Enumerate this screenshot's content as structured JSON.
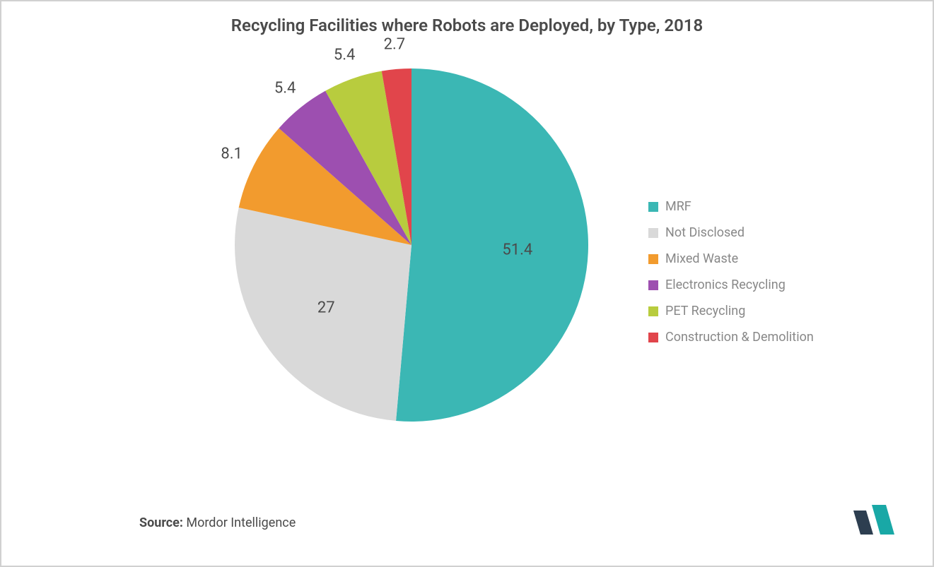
{
  "chart": {
    "type": "pie",
    "title": "Recycling Facilities where Robots are Deployed, by Type, 2018",
    "title_fontsize": 24,
    "title_color": "#4a4a4a",
    "background_color": "#ffffff",
    "border_color": "#d0d0d0",
    "radius": 250,
    "start_angle_deg": -90,
    "slices": [
      {
        "label": "MRF",
        "value": 51.4,
        "color": "#3bb7b4",
        "display": "51.4"
      },
      {
        "label": "Not Disclosed",
        "value": 27.0,
        "color": "#d9d9d9",
        "display": "27"
      },
      {
        "label": "Mixed Waste",
        "value": 8.1,
        "color": "#f29b2e",
        "display": "8.1"
      },
      {
        "label": "Electronics Recycling",
        "value": 5.4,
        "color": "#9d4fb0",
        "display": "5.4"
      },
      {
        "label": "PET Recycling",
        "value": 5.4,
        "color": "#b8cc3e",
        "display": "5.4"
      },
      {
        "label": "Construction & Demolition",
        "value": 2.7,
        "color": "#e1454b",
        "display": "2.7"
      }
    ],
    "label_fontsize": 22,
    "label_color": "#4a4a4a",
    "legend": {
      "fontsize": 18,
      "text_color": "#888888",
      "swatch_size": 14
    },
    "source_prefix": "Source:",
    "source_text": "Mordor Intelligence",
    "source_fontsize": 18,
    "logo": {
      "bar1_color": "#2d3e50",
      "bar2_color": "#19a8a6"
    }
  }
}
